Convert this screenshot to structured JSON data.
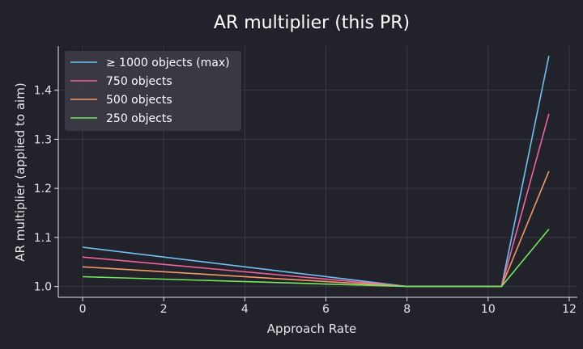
{
  "chart_data": {
    "type": "line",
    "title": "AR multiplier (this PR)",
    "xlabel": "Approach Rate",
    "ylabel": "AR multiplier (applied to aim)",
    "xlim": [
      -0.6,
      12.2
    ],
    "ylim": [
      0.978,
      1.49
    ],
    "xticks": [
      0,
      2,
      4,
      6,
      8,
      10,
      12
    ],
    "yticks": [
      1.0,
      1.1,
      1.2,
      1.3,
      1.4
    ],
    "ytick_labels": [
      "1.0",
      "1.1",
      "1.2",
      "1.3",
      "1.4"
    ],
    "grid": true,
    "legend_position": "top-left",
    "x": [
      0,
      8,
      10.33,
      11.5
    ],
    "series": [
      {
        "name": "≥ 1000 objects (max)",
        "color": "#6ec1f2",
        "values": [
          1.08,
          1.0,
          1.0,
          1.47
        ]
      },
      {
        "name": "750 objects",
        "color": "#f0649e",
        "values": [
          1.06,
          1.0,
          1.0,
          1.352
        ]
      },
      {
        "name": "500 objects",
        "color": "#f29a66",
        "values": [
          1.04,
          1.0,
          1.0,
          1.235
        ]
      },
      {
        "name": "250 objects",
        "color": "#73e85f",
        "values": [
          1.02,
          1.0,
          1.0,
          1.117
        ]
      }
    ]
  },
  "colors": {
    "background": "#22222b",
    "grid": "#3a3a45",
    "axis": "#e6e6e6",
    "legend_bg": "#3c3b46"
  }
}
